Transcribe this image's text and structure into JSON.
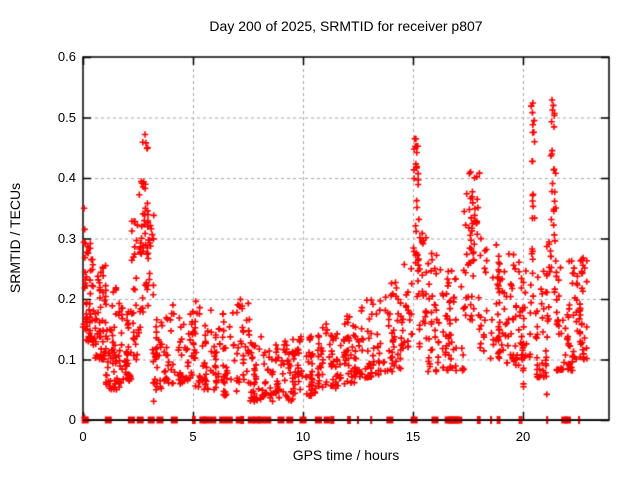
{
  "chart_data": {
    "type": "scatter",
    "title": "Day 200 of 2025, SRMTID for receiver p807",
    "xlabel": "GPS time / hours",
    "ylabel": "SRMTID / TECUs",
    "xlim": [
      0,
      23.91
    ],
    "ylim": [
      0,
      0.6
    ],
    "xtick_values": [
      0,
      5,
      10,
      15,
      20
    ],
    "xtick_labels": [
      "0",
      "5",
      "10",
      "15",
      "20"
    ],
    "ytick_values": [
      0,
      0.1,
      0.2,
      0.3,
      0.4,
      0.5,
      0.6
    ],
    "ytick_labels": [
      "0",
      "0.1",
      "0.2",
      "0.3",
      "0.4",
      "0.5",
      "0.6"
    ],
    "grid": true,
    "legend": "none",
    "marker": "plus",
    "marker_color": "#ff0000",
    "grid_color": "#a8a8a8",
    "border_color": "#000000",
    "seed": 20250719,
    "bands_format": "[x_start_hours, x_end_hours, n_points, y_min_TECU, y_max_TECU, low_bias_exponent]",
    "bands": [
      [
        0.0,
        0.15,
        16,
        0.15,
        0.35,
        1.5
      ],
      [
        0.1,
        0.55,
        42,
        0.13,
        0.3,
        1.9
      ],
      [
        0.45,
        1.05,
        55,
        0.1,
        0.26,
        1.8
      ],
      [
        1.0,
        1.65,
        50,
        0.05,
        0.22,
        1.3
      ],
      [
        1.6,
        2.2,
        45,
        0.06,
        0.19,
        1.4
      ],
      [
        2.2,
        2.5,
        26,
        0.1,
        0.33,
        1.2
      ],
      [
        2.5,
        2.75,
        20,
        0.14,
        0.4,
        1.2
      ],
      [
        2.72,
        2.95,
        22,
        0.2,
        0.47,
        1.0
      ],
      [
        2.92,
        3.2,
        22,
        0.17,
        0.34,
        0.9
      ],
      [
        3.15,
        3.35,
        10,
        0.02,
        0.12,
        1.0
      ],
      [
        3.3,
        4.0,
        40,
        0.05,
        0.17,
        1.3
      ],
      [
        4.0,
        5.0,
        48,
        0.06,
        0.19,
        1.5
      ],
      [
        5.0,
        6.0,
        50,
        0.05,
        0.2,
        1.6
      ],
      [
        6.0,
        7.0,
        52,
        0.04,
        0.18,
        1.5
      ],
      [
        7.0,
        7.6,
        34,
        0.06,
        0.2,
        1.5
      ],
      [
        7.6,
        8.6,
        55,
        0.03,
        0.14,
        1.3
      ],
      [
        8.6,
        9.6,
        55,
        0.03,
        0.14,
        1.4
      ],
      [
        9.6,
        10.6,
        55,
        0.04,
        0.14,
        1.4
      ],
      [
        10.6,
        11.6,
        55,
        0.05,
        0.16,
        1.4
      ],
      [
        11.6,
        12.6,
        55,
        0.06,
        0.18,
        1.4
      ],
      [
        12.6,
        13.6,
        52,
        0.07,
        0.2,
        1.4
      ],
      [
        13.6,
        14.6,
        50,
        0.08,
        0.23,
        1.3
      ],
      [
        14.6,
        15.0,
        18,
        0.12,
        0.26,
        1.2
      ],
      [
        15.0,
        15.25,
        26,
        0.22,
        0.465,
        1.0
      ],
      [
        15.2,
        15.7,
        30,
        0.12,
        0.32,
        1.3
      ],
      [
        15.7,
        16.5,
        45,
        0.08,
        0.28,
        1.5
      ],
      [
        16.5,
        17.3,
        45,
        0.08,
        0.25,
        1.4
      ],
      [
        17.3,
        17.75,
        28,
        0.15,
        0.38,
        1.0
      ],
      [
        17.55,
        17.95,
        25,
        0.25,
        0.41,
        0.8
      ],
      [
        17.95,
        19.0,
        55,
        0.1,
        0.3,
        1.5
      ],
      [
        19.0,
        19.9,
        50,
        0.09,
        0.28,
        1.5
      ],
      [
        19.95,
        20.05,
        7,
        0.045,
        0.12,
        1.0
      ],
      [
        19.9,
        20.35,
        28,
        0.1,
        0.25,
        1.3
      ],
      [
        20.35,
        20.55,
        20,
        0.2,
        0.52,
        1.0
      ],
      [
        20.55,
        21.1,
        32,
        0.07,
        0.25,
        1.4
      ],
      [
        21.0,
        21.1,
        4,
        0.04,
        0.1,
        1.0
      ],
      [
        21.1,
        21.3,
        14,
        0.13,
        0.3,
        1.0
      ],
      [
        21.25,
        21.5,
        26,
        0.2,
        0.53,
        1.1
      ],
      [
        21.5,
        22.3,
        55,
        0.08,
        0.27,
        1.6
      ],
      [
        22.3,
        22.9,
        50,
        0.1,
        0.27,
        1.2
      ]
    ],
    "extra_points": [
      [
        0.05,
        0.35
      ],
      [
        2.82,
        0.472
      ],
      [
        2.86,
        0.458
      ],
      [
        15.08,
        0.465
      ],
      [
        15.1,
        0.452
      ],
      [
        17.62,
        0.41
      ],
      [
        18.02,
        0.408
      ],
      [
        20.45,
        0.524
      ],
      [
        20.43,
        0.508
      ],
      [
        21.32,
        0.529
      ],
      [
        21.38,
        0.52
      ],
      [
        21.3,
        0.493
      ],
      [
        9.35,
        0.033
      ],
      [
        0.07,
        0.004
      ]
    ],
    "zero_square_markers_x": [
      0.1,
      1.15,
      2.2,
      2.6,
      3.1,
      3.5,
      4.15,
      5.45,
      5.6,
      5.9,
      6.35,
      6.65,
      7.1,
      7.65,
      7.9,
      8.1,
      8.4,
      9.0,
      9.4,
      10.0,
      10.7,
      11.1,
      13.95,
      15.05,
      16.0,
      16.6,
      16.72,
      16.84,
      16.96,
      17.08,
      21.9,
      22.02
    ],
    "zero_tick_markers_x": [
      5.0,
      5.08,
      7.2,
      7.28,
      11.3,
      11.38,
      12.05,
      12.13,
      12.5,
      13.1,
      17.95,
      18.03,
      18.55,
      18.85,
      18.93,
      19.85,
      19.93,
      21.1,
      22.55
    ]
  }
}
